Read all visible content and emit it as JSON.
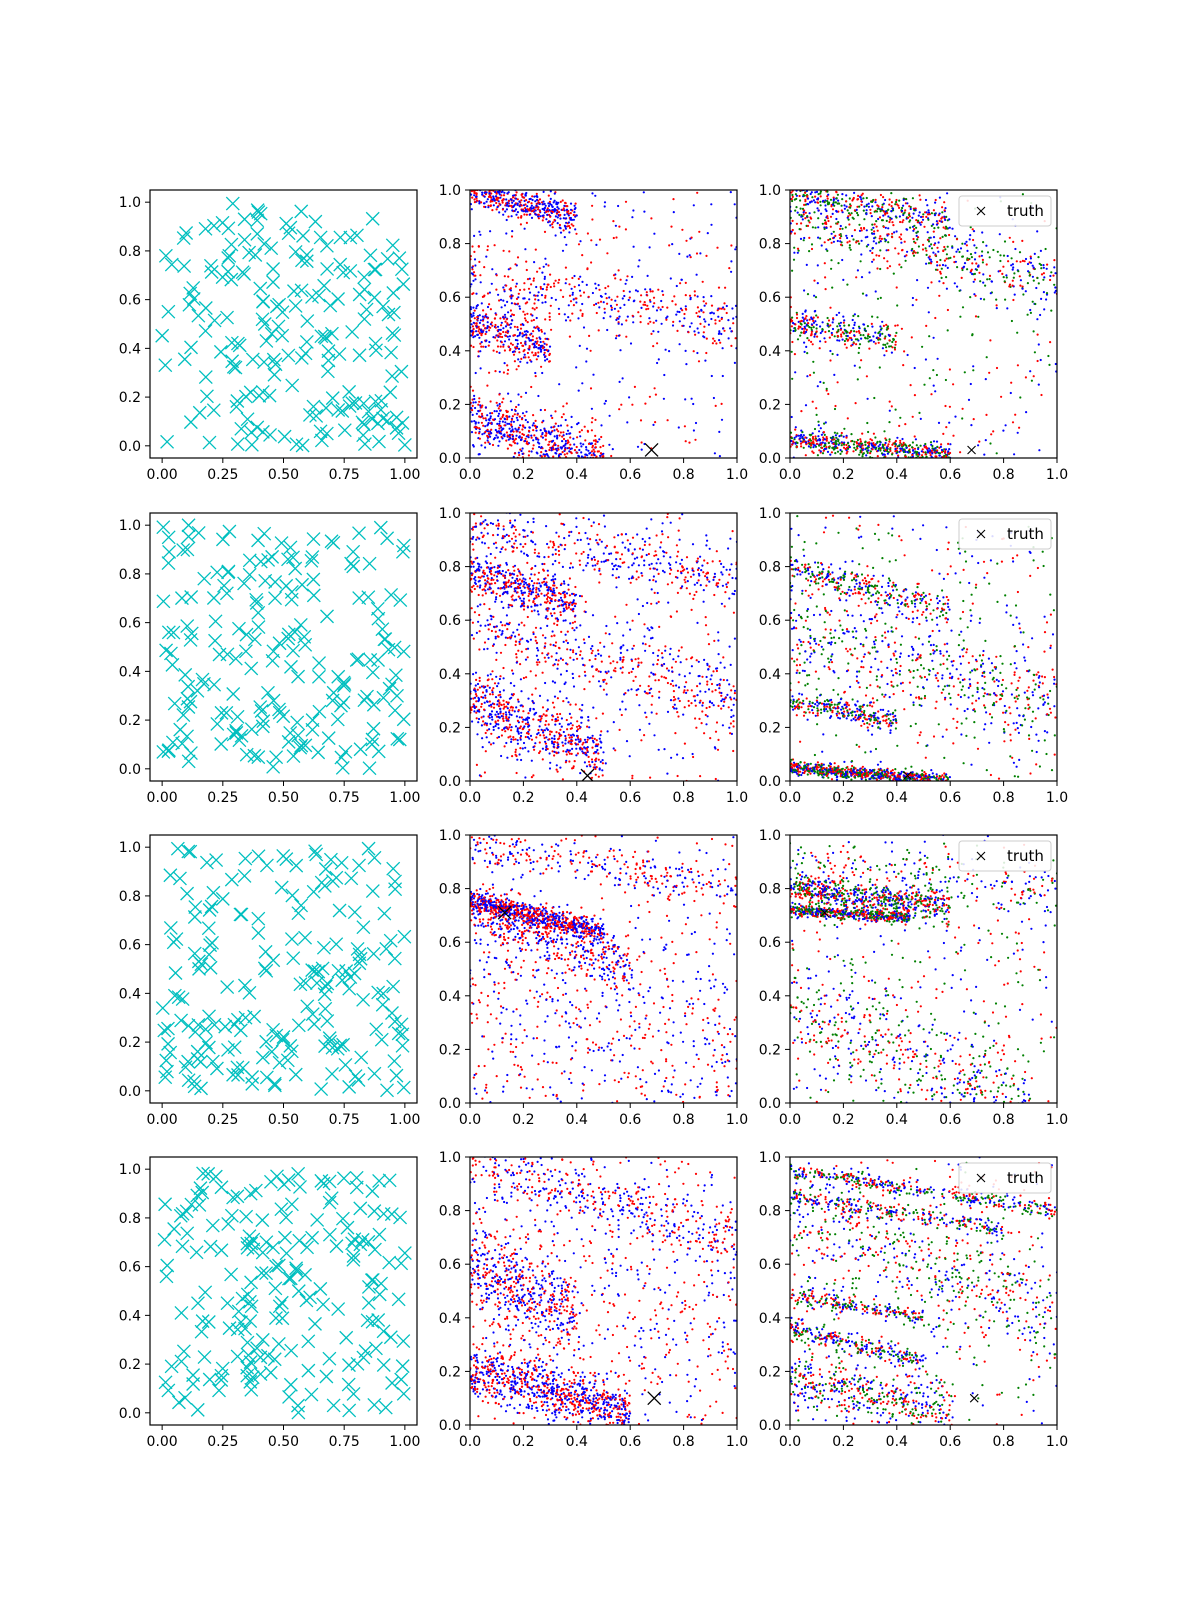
{
  "figure": {
    "rows": 4,
    "cols": 3
  },
  "colors": {
    "samples": "#00bfbf",
    "red": "#ff0000",
    "blue": "#0000ff",
    "green": "#008000",
    "truth": "#000000"
  },
  "legend": {
    "label": "truth",
    "placement": "upper right"
  },
  "chart_data": [
    {
      "type": "scatter",
      "row": 0,
      "truth": [
        0.68,
        0.03
      ],
      "samples": {
        "xlim": [
          -0.05,
          1.05
        ],
        "ylim": [
          -0.05,
          1.05
        ],
        "xticks": [
          "0.00",
          "0.25",
          "0.50",
          "0.75",
          "1.00"
        ],
        "yticks": [
          "0.0",
          "0.2",
          "0.4",
          "0.6",
          "0.8",
          "1.0"
        ],
        "marker": "x",
        "color": "c",
        "count": 200
      },
      "middle": {
        "xlim": [
          0,
          1
        ],
        "ylim": [
          0,
          1
        ],
        "xticks": [
          "0.0",
          "0.2",
          "0.4",
          "0.6",
          "0.8",
          "1.0"
        ],
        "yticks": [
          "0.0",
          "0.2",
          "0.4",
          "0.6",
          "0.8",
          "1.0"
        ],
        "series_colors": [
          "red",
          "blue"
        ],
        "bands": [
          {
            "y0": 1.0,
            "slope": -0.25,
            "width": 0.03,
            "xmax": 0.4,
            "n": 450
          },
          {
            "y0": 0.5,
            "slope": -0.3,
            "width": 0.04,
            "xmax": 0.3,
            "n": 300
          },
          {
            "y0": 0.15,
            "slope": -0.3,
            "width": 0.05,
            "xmax": 0.5,
            "n": 550
          },
          {
            "y0": 0.65,
            "slope": -0.15,
            "width": 0.06,
            "xmax": 1.0,
            "n": 350
          }
        ]
      },
      "right": {
        "xlim": [
          0,
          1
        ],
        "ylim": [
          0,
          1
        ],
        "xticks": [
          "0.0",
          "0.2",
          "0.4",
          "0.6",
          "0.8",
          "1.0"
        ],
        "yticks": [
          "0.0",
          "0.2",
          "0.4",
          "0.6",
          "0.8",
          "1.0"
        ],
        "series_colors": [
          "red",
          "blue",
          "green"
        ],
        "bands": [
          {
            "y0": 0.07,
            "slope": -0.1,
            "width": 0.02,
            "xmax": 0.6,
            "n": 550
          },
          {
            "y0": 1.0,
            "slope": -0.2,
            "width": 0.03,
            "xmax": 0.6,
            "n": 350
          },
          {
            "y0": 0.5,
            "slope": -0.15,
            "width": 0.03,
            "xmax": 0.4,
            "n": 250
          },
          {
            "y0": 0.9,
            "slope": -0.25,
            "width": 0.06,
            "xmax": 1.0,
            "n": 450
          }
        ]
      }
    },
    {
      "type": "scatter",
      "row": 1,
      "truth": [
        0.44,
        0.02
      ],
      "samples": {
        "xlim": [
          -0.05,
          1.05
        ],
        "ylim": [
          -0.05,
          1.05
        ],
        "xticks": [
          "0.00",
          "0.25",
          "0.50",
          "0.75",
          "1.00"
        ],
        "yticks": [
          "0.0",
          "0.2",
          "0.4",
          "0.6",
          "0.8",
          "1.0"
        ],
        "marker": "x",
        "color": "c",
        "count": 200
      },
      "middle": {
        "xlim": [
          0,
          1
        ],
        "ylim": [
          0,
          1
        ],
        "xticks": [
          "0.0",
          "0.2",
          "0.4",
          "0.6",
          "0.8",
          "1.0"
        ],
        "yticks": [
          "0.0",
          "0.2",
          "0.4",
          "0.6",
          "0.8",
          "1.0"
        ],
        "series_colors": [
          "red",
          "blue"
        ],
        "bands": [
          {
            "y0": 0.78,
            "slope": -0.3,
            "width": 0.04,
            "xmax": 0.4,
            "n": 400
          },
          {
            "y0": 0.3,
            "slope": -0.4,
            "width": 0.06,
            "xmax": 0.5,
            "n": 550
          },
          {
            "y0": 0.95,
            "slope": -0.2,
            "width": 0.05,
            "xmax": 1.0,
            "n": 350
          },
          {
            "y0": 0.6,
            "slope": -0.3,
            "width": 0.07,
            "xmax": 1.0,
            "n": 400
          }
        ]
      },
      "right": {
        "xlim": [
          0,
          1
        ],
        "ylim": [
          0,
          1
        ],
        "xticks": [
          "0.0",
          "0.2",
          "0.4",
          "0.6",
          "0.8",
          "1.0"
        ],
        "yticks": [
          "0.0",
          "0.2",
          "0.4",
          "0.6",
          "0.8",
          "1.0"
        ],
        "series_colors": [
          "red",
          "blue",
          "green"
        ],
        "bands": [
          {
            "y0": 0.05,
            "slope": -0.08,
            "width": 0.012,
            "xmax": 0.6,
            "n": 700
          },
          {
            "y0": 0.79,
            "slope": -0.25,
            "width": 0.03,
            "xmax": 0.6,
            "n": 300
          },
          {
            "y0": 0.3,
            "slope": -0.2,
            "width": 0.02,
            "xmax": 0.4,
            "n": 250
          },
          {
            "y0": 0.55,
            "slope": -0.25,
            "width": 0.1,
            "xmax": 1.0,
            "n": 500
          }
        ]
      }
    },
    {
      "type": "scatter",
      "row": 2,
      "truth": [
        0.13,
        0.71
      ],
      "samples": {
        "xlim": [
          -0.05,
          1.05
        ],
        "ylim": [
          -0.05,
          1.05
        ],
        "xticks": [
          "0.00",
          "0.25",
          "0.50",
          "0.75",
          "1.00"
        ],
        "yticks": [
          "0.0",
          "0.2",
          "0.4",
          "0.6",
          "0.8",
          "1.0"
        ],
        "marker": "x",
        "color": "c",
        "count": 200
      },
      "middle": {
        "xlim": [
          0,
          1
        ],
        "ylim": [
          0,
          1
        ],
        "xticks": [
          "0.0",
          "0.2",
          "0.4",
          "0.6",
          "0.8",
          "1.0"
        ],
        "yticks": [
          "0.0",
          "0.2",
          "0.4",
          "0.6",
          "0.8",
          "1.0"
        ],
        "series_colors": [
          "red",
          "blue"
        ],
        "bands": [
          {
            "y0": 0.76,
            "slope": -0.25,
            "width": 0.02,
            "xmax": 0.5,
            "n": 650
          },
          {
            "y0": 0.72,
            "slope": -0.35,
            "width": 0.05,
            "xmax": 0.6,
            "n": 450
          },
          {
            "y0": 0.95,
            "slope": -0.15,
            "width": 0.04,
            "xmax": 1.0,
            "n": 250
          },
          {
            "y0": 0.4,
            "slope": -0.3,
            "width": 0.2,
            "xmax": 1.0,
            "n": 350
          }
        ]
      },
      "right": {
        "xlim": [
          0,
          1
        ],
        "ylim": [
          0,
          1
        ],
        "xticks": [
          "0.0",
          "0.2",
          "0.4",
          "0.6",
          "0.8",
          "1.0"
        ],
        "yticks": [
          "0.0",
          "0.2",
          "0.4",
          "0.6",
          "0.8",
          "1.0"
        ],
        "series_colors": [
          "red",
          "blue",
          "green"
        ],
        "bands": [
          {
            "y0": 0.72,
            "slope": -0.07,
            "width": 0.01,
            "xmax": 0.45,
            "n": 450
          },
          {
            "y0": 0.8,
            "slope": -0.12,
            "width": 0.03,
            "xmax": 0.6,
            "n": 600
          },
          {
            "y0": 0.35,
            "slope": -0.4,
            "width": 0.12,
            "xmax": 0.9,
            "n": 500
          },
          {
            "y0": 0.9,
            "slope": -0.1,
            "width": 0.05,
            "xmax": 1.0,
            "n": 200
          }
        ]
      }
    },
    {
      "type": "scatter",
      "row": 3,
      "truth": [
        0.69,
        0.1
      ],
      "samples": {
        "xlim": [
          -0.05,
          1.05
        ],
        "ylim": [
          -0.05,
          1.05
        ],
        "xticks": [
          "0.00",
          "0.25",
          "0.50",
          "0.75",
          "1.00"
        ],
        "yticks": [
          "0.0",
          "0.2",
          "0.4",
          "0.6",
          "0.8",
          "1.0"
        ],
        "marker": "x",
        "color": "c",
        "count": 200
      },
      "middle": {
        "xlim": [
          0,
          1
        ],
        "ylim": [
          0,
          1
        ],
        "xticks": [
          "0.0",
          "0.2",
          "0.4",
          "0.6",
          "0.8",
          "1.0"
        ],
        "yticks": [
          "0.0",
          "0.2",
          "0.4",
          "0.6",
          "0.8",
          "1.0"
        ],
        "series_colors": [
          "red",
          "blue"
        ],
        "bands": [
          {
            "y0": 0.2,
            "slope": -0.25,
            "width": 0.05,
            "xmax": 0.6,
            "n": 800
          },
          {
            "y0": 0.6,
            "slope": -0.5,
            "width": 0.08,
            "xmax": 0.4,
            "n": 400
          },
          {
            "y0": 1.0,
            "slope": -0.3,
            "width": 0.06,
            "xmax": 1.0,
            "n": 400
          },
          {
            "y0": 0.6,
            "slope": -0.2,
            "width": 0.2,
            "xmax": 1.0,
            "n": 300
          }
        ]
      },
      "right": {
        "xlim": [
          0,
          1
        ],
        "ylim": [
          0,
          1
        ],
        "xticks": [
          "0.0",
          "0.2",
          "0.4",
          "0.6",
          "0.8",
          "1.0"
        ],
        "yticks": [
          "0.0",
          "0.2",
          "0.4",
          "0.6",
          "0.8",
          "1.0"
        ],
        "series_colors": [
          "red",
          "blue",
          "green"
        ],
        "bands": [
          {
            "y0": 0.95,
            "slope": -0.15,
            "width": 0.015,
            "xmax": 1.0,
            "n": 350
          },
          {
            "y0": 0.85,
            "slope": -0.15,
            "width": 0.015,
            "xmax": 0.8,
            "n": 250
          },
          {
            "y0": 0.48,
            "slope": -0.15,
            "width": 0.015,
            "xmax": 0.5,
            "n": 200
          },
          {
            "y0": 0.36,
            "slope": -0.25,
            "width": 0.02,
            "xmax": 0.5,
            "n": 250
          },
          {
            "y0": 0.17,
            "slope": -0.2,
            "width": 0.05,
            "xmax": 0.6,
            "n": 400
          },
          {
            "y0": 0.8,
            "slope": -0.4,
            "width": 0.1,
            "xmax": 1.0,
            "n": 450
          }
        ]
      }
    }
  ]
}
